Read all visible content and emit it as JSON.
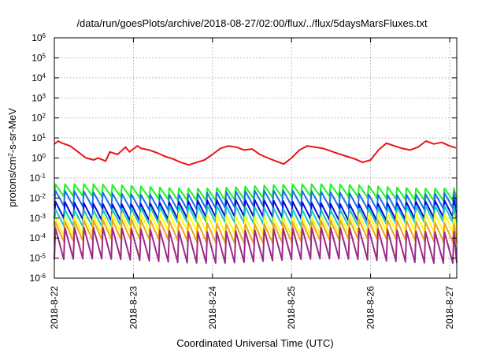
{
  "chart_data": {
    "type": "line",
    "title": "/data/run/goesPlots/archive/2018-08-27/02:00/flux/../flux/5daysMarsFluxes.txt",
    "xlabel": "Coordinated Universal Time (UTC)",
    "ylabel": {
      "base": "protons/cm",
      "sup": "2",
      "rest": "-s-sr-MeV"
    },
    "x_scale": "time",
    "xlim": [
      "2018-08-22 00:00",
      "2018-08-27 01:00"
    ],
    "x_ticks": [
      "2018-8-22",
      "2018-8-23",
      "2018-8-24",
      "2018-8-25",
      "2018-8-26",
      "2018-8-27"
    ],
    "y_scale": "log",
    "ylim": [
      1e-06,
      1000000.0
    ],
    "y_ticks": [
      {
        "value": 1e-06,
        "base": "10",
        "exp": "-6"
      },
      {
        "value": 1e-05,
        "base": "10",
        "exp": "-5"
      },
      {
        "value": 0.0001,
        "base": "10",
        "exp": "-4"
      },
      {
        "value": 0.001,
        "base": "10",
        "exp": "-3"
      },
      {
        "value": 0.01,
        "base": "10",
        "exp": "-2"
      },
      {
        "value": 0.1,
        "base": "10",
        "exp": "-1"
      },
      {
        "value": 1.0,
        "base": "10",
        "exp": "0"
      },
      {
        "value": 10.0,
        "base": "10",
        "exp": "1"
      },
      {
        "value": 100.0,
        "base": "10",
        "exp": "2"
      },
      {
        "value": 1000.0,
        "base": "10",
        "exp": "3"
      },
      {
        "value": 10000.0,
        "base": "10",
        "exp": "4"
      },
      {
        "value": 100000.0,
        "base": "10",
        "exp": "5"
      },
      {
        "value": 1000000.0,
        "base": "10",
        "exp": "6"
      }
    ],
    "grid": true,
    "legend": "none",
    "series": [
      {
        "color": "#e8151b",
        "x_days": [
          0,
          0.05,
          0.1,
          0.2,
          0.3,
          0.4,
          0.5,
          0.55,
          0.65,
          0.7,
          0.8,
          0.9,
          0.95,
          1.05,
          1.1,
          1.2,
          1.3,
          1.4,
          1.5,
          1.6,
          1.7,
          1.8,
          1.9,
          2.0,
          2.1,
          2.2,
          2.3,
          2.4,
          2.5,
          2.6,
          2.7,
          2.8,
          2.9,
          3.0,
          3.1,
          3.2,
          3.3,
          3.4,
          3.5,
          3.6,
          3.7,
          3.8,
          3.9,
          4.0,
          4.1,
          4.2,
          4.3,
          4.4,
          4.5,
          4.6,
          4.7,
          4.8,
          4.9,
          5.0,
          5.08
        ],
        "values": [
          5.0,
          7.0,
          5.5,
          4.0,
          2.0,
          1.0,
          0.8,
          1.0,
          0.7,
          2.0,
          1.5,
          3.5,
          2.0,
          4.0,
          3.0,
          2.5,
          1.8,
          1.2,
          0.9,
          0.6,
          0.45,
          0.6,
          0.8,
          1.5,
          3.0,
          4.0,
          3.5,
          2.5,
          2.8,
          1.5,
          1.0,
          0.7,
          0.5,
          1.0,
          2.5,
          4.0,
          3.5,
          3.0,
          2.2,
          1.6,
          1.2,
          0.9,
          0.6,
          0.8,
          2.5,
          5.5,
          4.0,
          3.0,
          2.5,
          3.5,
          7.0,
          5.0,
          6.0,
          4.0,
          3.2
        ]
      },
      {
        "color": "#18f51e",
        "base": 0.02,
        "amp": 2.0,
        "period_days": 0.12
      },
      {
        "color": "#1b6ee8",
        "base": 0.008,
        "amp": 2.4,
        "period_days": 0.12
      },
      {
        "color": "#0a0ad8",
        "base": 0.0025,
        "amp": 2.6,
        "period_days": 0.12
      },
      {
        "color": "#16c8c0",
        "base": 0.0013,
        "amp": 2.6,
        "period_days": 0.12
      },
      {
        "color": "#ffff14",
        "base": 0.0005,
        "amp": 2.8,
        "period_days": 0.12
      },
      {
        "color": "#f0a01e",
        "base": 0.00022,
        "amp": 3.0,
        "period_days": 0.12
      },
      {
        "color": "#9b2a87",
        "base": 4.5e-05,
        "amp": 6.0,
        "period_days": 0.12
      }
    ]
  }
}
